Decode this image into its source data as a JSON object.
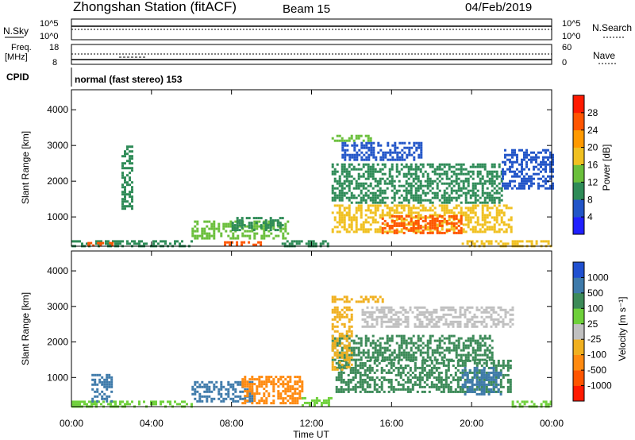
{
  "header": {
    "station": "Zhongshan Station (fitACF)",
    "beam": "Beam 15",
    "date": "04/Feb/2019"
  },
  "top_panels": {
    "nsky_label": "N.Sky",
    "nsearch_label": "N.Search",
    "noise_ticks_left": [
      "10^5",
      "10^0"
    ],
    "noise_ticks_right": [
      "10^5",
      "10^0"
    ],
    "freq_label": "Freq.",
    "freq_unit": "[MHz]",
    "freq_ticks": [
      "18",
      "8"
    ],
    "nave_label": "Nave",
    "nave_ticks": [
      "60",
      "0"
    ],
    "cpid_label": "CPID",
    "cpid_text": "normal (fast stereo) 153"
  },
  "time_axis": {
    "label": "Time UT",
    "ticks": [
      "00:00",
      "04:00",
      "08:00",
      "12:00",
      "16:00",
      "20:00",
      "00:00"
    ]
  },
  "colorbars": {
    "power": {
      "label": "Power [dB]",
      "ticks": [
        "4",
        "8",
        "12",
        "16",
        "20",
        "24",
        "28"
      ],
      "colors": [
        "#2020ff",
        "#2255c8",
        "#2e8b57",
        "#6abf3b",
        "#f0c020",
        "#ff9900",
        "#ff5500",
        "#ff1a00"
      ]
    },
    "velocity": {
      "label": "Velocity [m s⁻¹]",
      "ticks": [
        "1000",
        "500",
        "100",
        "25",
        "-25",
        "-100",
        "-500",
        "-1000"
      ],
      "colors": [
        "#2050d0",
        "#3e7aaa",
        "#3c8a58",
        "#6ed03a",
        "#c0c0c0",
        "#f0b020",
        "#ff8a10",
        "#ff5500",
        "#ff1a00"
      ]
    }
  },
  "chart_data": [
    {
      "type": "heatmap",
      "title": "Power",
      "ylabel": "Slant Range [km]",
      "xlabel": "",
      "ylim": [
        180,
        4560
      ],
      "yticks": [
        "1000",
        "2000",
        "3000",
        "4000"
      ],
      "xlim": [
        "00:00",
        "24:00"
      ],
      "regions": [
        {
          "t": [
            0.0,
            6.0
          ],
          "r": [
            200,
            350
          ],
          "value": 10
        },
        {
          "t": [
            0.8,
            2.0
          ],
          "r": [
            200,
            300
          ],
          "value": 26
        },
        {
          "t": [
            6.0,
            10.8
          ],
          "r": [
            380,
            900
          ],
          "value": 12
        },
        {
          "t": [
            8.0,
            10.5
          ],
          "r": [
            650,
            1000
          ],
          "value": 10
        },
        {
          "t": [
            7.5,
            9.5
          ],
          "r": [
            200,
            320
          ],
          "value": 26
        },
        {
          "t": [
            10.5,
            12.8
          ],
          "r": [
            200,
            350
          ],
          "value": 11
        },
        {
          "t": [
            13.0,
            22.0
          ],
          "r": [
            600,
            1350
          ],
          "value": 16
        },
        {
          "t": [
            15.5,
            19.5
          ],
          "r": [
            550,
            1050
          ],
          "value": 24
        },
        {
          "t": [
            13.0,
            21.5
          ],
          "r": [
            1400,
            2500
          ],
          "value": 9
        },
        {
          "t": [
            13.5,
            17.5
          ],
          "r": [
            2600,
            3100
          ],
          "value": 7
        },
        {
          "t": [
            13.0,
            15.0
          ],
          "r": [
            3150,
            3300
          ],
          "value": 14
        },
        {
          "t": [
            19.5,
            24.0
          ],
          "r": [
            200,
            350
          ],
          "value": 18
        },
        {
          "t": [
            2.5,
            3.0
          ],
          "r": [
            1200,
            3000
          ],
          "value": 8
        },
        {
          "t": [
            21.5,
            24.0
          ],
          "r": [
            1800,
            2900
          ],
          "value": 6
        }
      ]
    },
    {
      "type": "heatmap",
      "title": "Velocity",
      "ylabel": "Slant Range [km]",
      "xlabel": "Time UT",
      "ylim": [
        180,
        4560
      ],
      "yticks": [
        "1000",
        "2000",
        "3000",
        "4000"
      ],
      "xlim": [
        "00:00",
        "24:00"
      ],
      "regions": [
        {
          "t": [
            0.0,
            6.0
          ],
          "r": [
            200,
            350
          ],
          "value": 80
        },
        {
          "t": [
            1.0,
            2.0
          ],
          "r": [
            350,
            1100
          ],
          "value": 700
        },
        {
          "t": [
            6.0,
            9.0
          ],
          "r": [
            350,
            900
          ],
          "value": 600
        },
        {
          "t": [
            8.5,
            11.5
          ],
          "r": [
            250,
            1050
          ],
          "value": -300
        },
        {
          "t": [
            11.5,
            13.0
          ],
          "r": [
            200,
            450
          ],
          "value": 80
        },
        {
          "t": [
            13.2,
            22.0
          ],
          "r": [
            600,
            1500
          ],
          "value": 200
        },
        {
          "t": [
            13.0,
            21.0
          ],
          "r": [
            1500,
            2200
          ],
          "value": 200
        },
        {
          "t": [
            14.5,
            22.0
          ],
          "r": [
            2400,
            3000
          ],
          "value": 0
        },
        {
          "t": [
            13.0,
            15.5
          ],
          "r": [
            3150,
            3300
          ],
          "value": -100
        },
        {
          "t": [
            13.0,
            14.0
          ],
          "r": [
            1200,
            3000
          ],
          "value": -100
        },
        {
          "t": [
            19.5,
            21.5
          ],
          "r": [
            500,
            1300
          ],
          "value": 700
        },
        {
          "t": [
            22.0,
            24.0
          ],
          "r": [
            200,
            350
          ],
          "value": 50
        }
      ]
    }
  ]
}
